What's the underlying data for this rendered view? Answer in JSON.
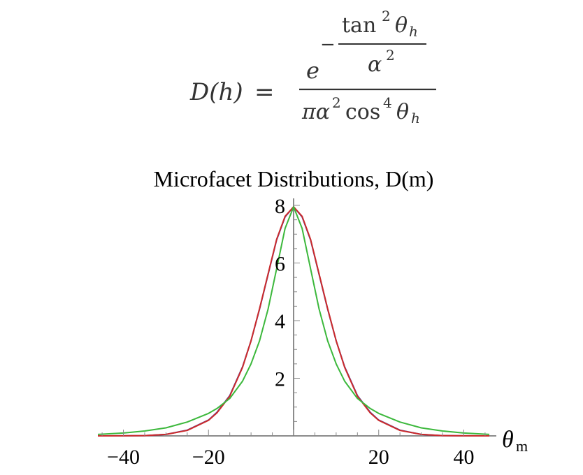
{
  "formula": {
    "lhs": "D(h)",
    "equals": "=",
    "e": "e",
    "minus": "−",
    "tan": "tan",
    "sq": "2",
    "theta_h": "θ",
    "sub_h": "h",
    "alpha": "α",
    "pi_alpha": "πα",
    "cos": "cos",
    "four": "4"
  },
  "chart_data": {
    "type": "line",
    "title": "Microfacet Distributions, D(m)",
    "xlabel_main": "θ",
    "xlabel_sub": "m",
    "xlim": [
      -46,
      46
    ],
    "ylim": [
      0,
      8
    ],
    "xticks": [
      -40,
      -20,
      20,
      40
    ],
    "xtick_labels": [
      "−40",
      "−20",
      "20",
      "40"
    ],
    "yticks": [
      2,
      4,
      6,
      8
    ],
    "ytick_labels": [
      "2",
      "4",
      "6",
      "8"
    ],
    "series": [
      {
        "color": "#3a3aa8",
        "x": [
          -46,
          -40,
          -35,
          -30,
          -25,
          -20,
          -18,
          -15,
          -12,
          -10,
          -8,
          -6,
          -4,
          -2,
          0,
          2,
          4,
          6,
          8,
          10,
          12,
          15,
          18,
          20,
          25,
          30,
          35,
          40,
          46
        ],
        "y": [
          0,
          0.002,
          0.01,
          0.05,
          0.2,
          0.55,
          0.82,
          1.4,
          2.4,
          3.3,
          4.4,
          5.6,
          6.8,
          7.6,
          7.95,
          7.6,
          6.8,
          5.6,
          4.4,
          3.3,
          2.4,
          1.4,
          0.82,
          0.55,
          0.2,
          0.05,
          0.01,
          0.002,
          0
        ]
      },
      {
        "color": "#cc2b2b",
        "x": [
          -46,
          -40,
          -35,
          -30,
          -25,
          -20,
          -18,
          -15,
          -12,
          -10,
          -8,
          -6,
          -4,
          -2,
          0,
          2,
          4,
          6,
          8,
          10,
          12,
          15,
          18,
          20,
          25,
          30,
          35,
          40,
          46
        ],
        "y": [
          0,
          0.002,
          0.01,
          0.05,
          0.19,
          0.54,
          0.8,
          1.38,
          2.38,
          3.3,
          4.42,
          5.62,
          6.82,
          7.62,
          7.95,
          7.62,
          6.82,
          5.62,
          4.42,
          3.3,
          2.38,
          1.38,
          0.8,
          0.54,
          0.19,
          0.05,
          0.01,
          0.002,
          0
        ]
      },
      {
        "color": "#3cb83c",
        "x": [
          -46,
          -40,
          -35,
          -30,
          -25,
          -20,
          -18,
          -15,
          -12,
          -10,
          -8,
          -6,
          -4,
          -2,
          0,
          2,
          4,
          6,
          8,
          10,
          12,
          15,
          18,
          20,
          25,
          30,
          35,
          40,
          46
        ],
        "y": [
          0.05,
          0.1,
          0.17,
          0.28,
          0.48,
          0.78,
          0.95,
          1.3,
          1.9,
          2.5,
          3.3,
          4.4,
          5.8,
          7.2,
          7.95,
          7.2,
          5.8,
          4.4,
          3.3,
          2.5,
          1.9,
          1.3,
          0.95,
          0.78,
          0.48,
          0.28,
          0.17,
          0.1,
          0.05
        ]
      }
    ]
  }
}
